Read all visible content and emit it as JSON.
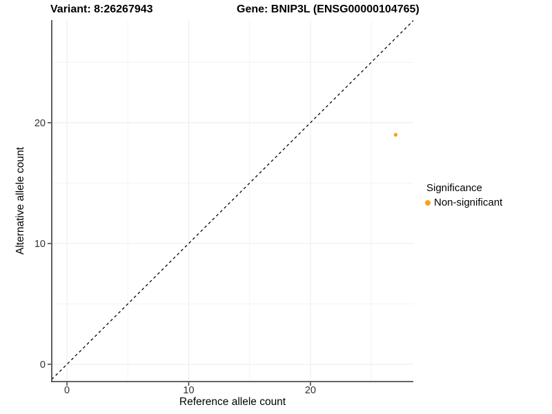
{
  "title": {
    "variant": "Variant: 8:26267943",
    "gene": "Gene: BNIP3L (ENSG00000104765)"
  },
  "axes": {
    "x_label": "Reference allele count",
    "y_label": "Alternative allele count"
  },
  "legend": {
    "title": "Significance",
    "items": [
      {
        "label": "Non-significant",
        "color": "#F9A11A"
      }
    ]
  },
  "chart_data": {
    "type": "scatter",
    "title": "Variant: 8:26267943  Gene: BNIP3L (ENSG00000104765)",
    "xlabel": "Reference allele count",
    "ylabel": "Alternative allele count",
    "x": {
      "min": -1.25,
      "max": 28.45,
      "ticks": [
        0,
        10,
        20
      ],
      "minor_ticks": [
        5,
        15,
        25
      ]
    },
    "y": {
      "min": -1.43,
      "max": 28.5,
      "ticks": [
        0,
        10,
        20
      ],
      "minor_ticks": [
        5,
        15,
        25
      ]
    },
    "points": [
      {
        "x": 27,
        "y": 19,
        "series": "Non-significant",
        "color": "#F9A11A",
        "radius": 2.7
      }
    ],
    "reference_line": {
      "type": "identity",
      "slope": 1,
      "intercept": 0,
      "style": "dashed",
      "color": "#000000"
    },
    "grid": {
      "major_color": "#EBEBEB",
      "minor_color": "#F3F3F3"
    },
    "axis_line_color": "#4D4D4D",
    "tick_color": "#333333",
    "tick_label_color": "#303030",
    "legend_position": "right"
  }
}
